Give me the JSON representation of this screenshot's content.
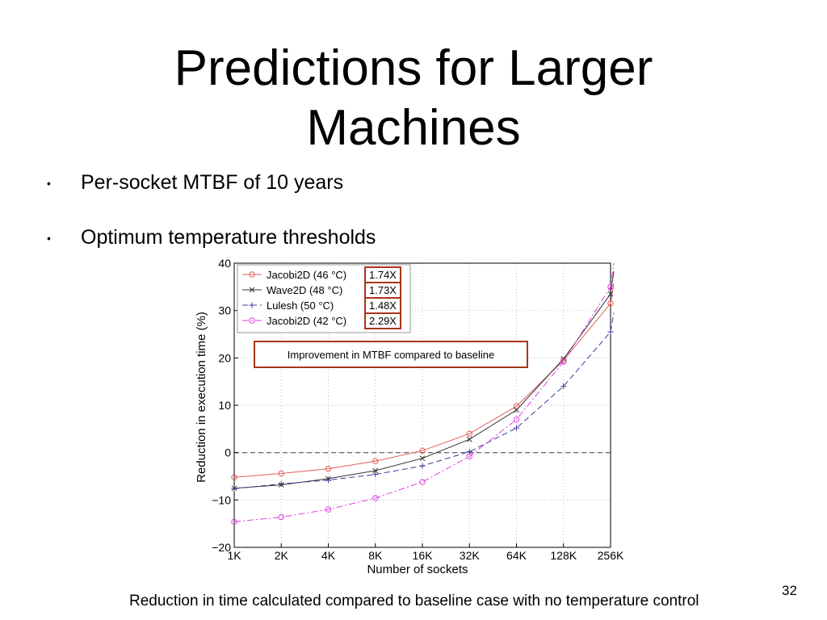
{
  "slide": {
    "title_line1": "Predictions for Larger",
    "title_line2": "Machines",
    "bullets": [
      "Per-socket MTBF of 10 years",
      "Optimum temperature thresholds"
    ],
    "caption": "Reduction in time calculated compared to baseline case with no temperature control",
    "page_number": "32"
  },
  "chart_data": {
    "type": "line",
    "xlabel": "Number of sockets",
    "ylabel": "Reduction in execution time (%)",
    "categories": [
      "1K",
      "2K",
      "4K",
      "8K",
      "16K",
      "32K",
      "64K",
      "128K",
      "256K"
    ],
    "ylim": [
      -20,
      40
    ],
    "yticks": [
      "40",
      "30",
      "20",
      "10",
      "0",
      "−10",
      "−20"
    ],
    "grid": true,
    "legend_position": "top-left",
    "series": [
      {
        "name": "Jacobi2D (46 °C)",
        "ratio": "1.74X",
        "color": "#e0605a",
        "dash": "solid",
        "marker": "circle",
        "values": [
          -5.2,
          -4.4,
          -3.4,
          -1.8,
          0.4,
          4.0,
          9.8,
          19.5,
          31.5
        ]
      },
      {
        "name": "Wave2D (48 °C)",
        "ratio": "1.73X",
        "color": "#333333",
        "dash": "solid",
        "marker": "x",
        "values": [
          -7.5,
          -6.8,
          -5.5,
          -3.8,
          -1.2,
          2.8,
          9.0,
          19.8,
          33.5
        ]
      },
      {
        "name": "Lulesh (50 °C)",
        "ratio": "1.48X",
        "color": "#3c3c9a",
        "dash": "dashed",
        "marker": "plus",
        "values": [
          -7.6,
          -6.6,
          -5.8,
          -4.6,
          -2.8,
          0.2,
          5.2,
          14.0,
          25.5
        ]
      },
      {
        "name": "Jacobi2D (42 °C)",
        "ratio": "2.29X",
        "color": "#e040e0",
        "dash": "dashdot",
        "marker": "circle",
        "values": [
          -14.6,
          -13.6,
          -12.0,
          -9.6,
          -6.2,
          -0.8,
          7.0,
          19.2,
          35.0
        ]
      }
    ],
    "annotation": "Improvement in MTBF compared to baseline",
    "reference_line": 0
  }
}
